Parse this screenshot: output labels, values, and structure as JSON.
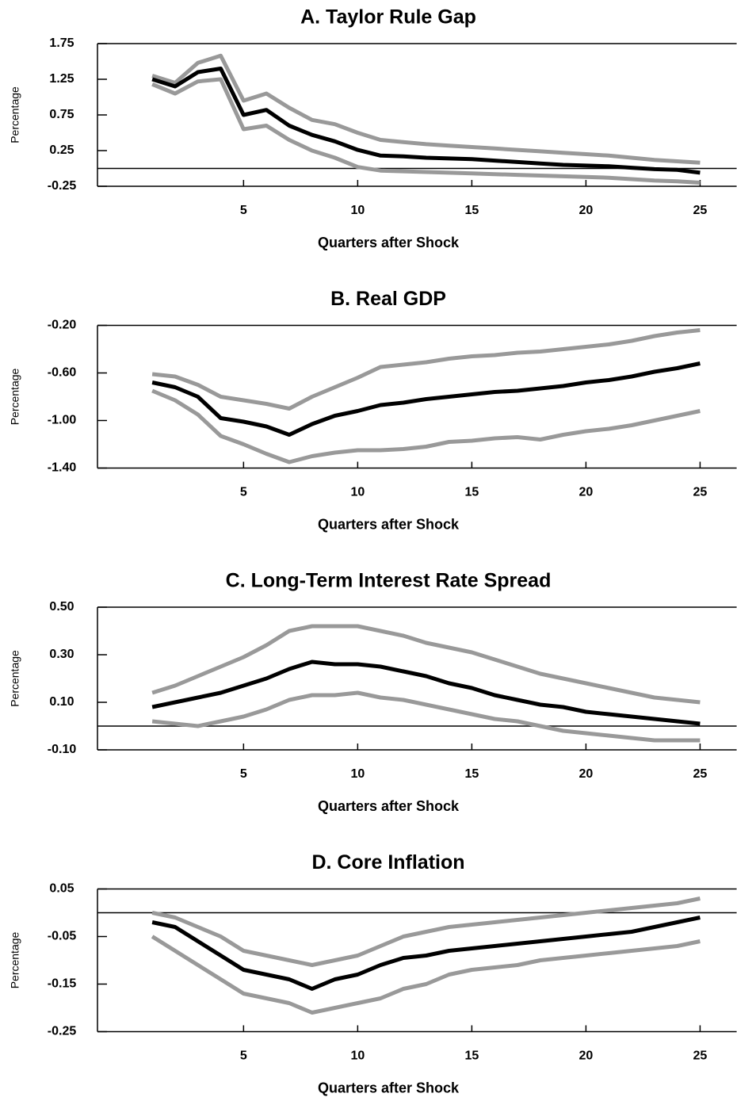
{
  "chart_data": [
    {
      "type": "line",
      "title": "A. Taylor Rule Gap",
      "xlabel": "Quarters after Shock",
      "ylabel": "Percentage",
      "x": [
        1,
        2,
        3,
        4,
        5,
        6,
        7,
        8,
        9,
        10,
        11,
        12,
        13,
        14,
        15,
        16,
        17,
        18,
        19,
        20,
        21,
        22,
        23,
        24,
        25
      ],
      "xlim": [
        -1.4,
        26.6
      ],
      "xticks": [
        5,
        10,
        15,
        20,
        25
      ],
      "ylim": [
        -0.25,
        1.75
      ],
      "yticks": [
        1.75,
        1.25,
        0.75,
        0.25,
        -0.25
      ],
      "zero_line": true,
      "series": [
        {
          "color": "#999999",
          "values": [
            1.3,
            1.2,
            1.48,
            1.58,
            0.95,
            1.05,
            0.85,
            0.68,
            0.62,
            0.5,
            0.4,
            0.37,
            0.34,
            0.32,
            0.3,
            0.28,
            0.26,
            0.24,
            0.22,
            0.2,
            0.18,
            0.15,
            0.12,
            0.1,
            0.08
          ]
        },
        {
          "color": "#999999",
          "values": [
            1.18,
            1.05,
            1.22,
            1.25,
            0.55,
            0.6,
            0.4,
            0.25,
            0.15,
            0.02,
            -0.03,
            -0.04,
            -0.05,
            -0.06,
            -0.07,
            -0.08,
            -0.09,
            -0.1,
            -0.11,
            -0.12,
            -0.13,
            -0.15,
            -0.17,
            -0.18,
            -0.2
          ]
        },
        {
          "color": "#000000",
          "values": [
            1.25,
            1.15,
            1.35,
            1.4,
            0.75,
            0.82,
            0.6,
            0.47,
            0.38,
            0.26,
            0.18,
            0.17,
            0.15,
            0.14,
            0.13,
            0.11,
            0.09,
            0.07,
            0.05,
            0.04,
            0.03,
            0.01,
            -0.01,
            -0.02,
            -0.06
          ]
        }
      ]
    },
    {
      "type": "line",
      "title": "B. Real GDP",
      "xlabel": "Quarters after Shock",
      "ylabel": "Percentage",
      "x": [
        1,
        2,
        3,
        4,
        5,
        6,
        7,
        8,
        9,
        10,
        11,
        12,
        13,
        14,
        15,
        16,
        17,
        18,
        19,
        20,
        21,
        22,
        23,
        24,
        25
      ],
      "xlim": [
        -1.4,
        26.6
      ],
      "xticks": [
        5,
        10,
        15,
        20,
        25
      ],
      "ylim": [
        -1.4,
        -0.2
      ],
      "yticks": [
        {
          "value": -0.2,
          "label": "-0.20"
        },
        {
          "value": -0.6,
          "label": "-0.60"
        },
        {
          "value": -1.0,
          "label": "-1.00"
        },
        {
          "value": -1.4,
          "label": "-1.40"
        }
      ],
      "zero_line": false,
      "series": [
        {
          "color": "#999999",
          "values": [
            -0.61,
            -0.63,
            -0.7,
            -0.8,
            -0.83,
            -0.86,
            -0.9,
            -0.8,
            -0.72,
            -0.64,
            -0.55,
            -0.53,
            -0.51,
            -0.48,
            -0.46,
            -0.45,
            -0.43,
            -0.42,
            -0.4,
            -0.38,
            -0.36,
            -0.33,
            -0.29,
            -0.26,
            -0.24
          ]
        },
        {
          "color": "#999999",
          "values": [
            -0.75,
            -0.83,
            -0.95,
            -1.13,
            -1.2,
            -1.28,
            -1.35,
            -1.3,
            -1.27,
            -1.25,
            -1.25,
            -1.24,
            -1.22,
            -1.18,
            -1.17,
            -1.15,
            -1.14,
            -1.16,
            -1.12,
            -1.09,
            -1.07,
            -1.04,
            -1.0,
            -0.96,
            -0.92
          ]
        },
        {
          "color": "#000000",
          "values": [
            -0.68,
            -0.72,
            -0.8,
            -0.98,
            -1.01,
            -1.05,
            -1.12,
            -1.03,
            -0.96,
            -0.92,
            -0.87,
            -0.85,
            -0.82,
            -0.8,
            -0.78,
            -0.76,
            -0.75,
            -0.73,
            -0.71,
            -0.68,
            -0.66,
            -0.63,
            -0.59,
            -0.56,
            -0.52
          ]
        }
      ]
    },
    {
      "type": "line",
      "title": "C. Long-Term Interest Rate Spread",
      "xlabel": "Quarters after Shock",
      "ylabel": "Percentage",
      "x": [
        1,
        2,
        3,
        4,
        5,
        6,
        7,
        8,
        9,
        10,
        11,
        12,
        13,
        14,
        15,
        16,
        17,
        18,
        19,
        20,
        21,
        22,
        23,
        24,
        25
      ],
      "xlim": [
        -1.4,
        26.6
      ],
      "xticks": [
        5,
        10,
        15,
        20,
        25
      ],
      "ylim": [
        -0.1,
        0.5
      ],
      "yticks": [
        {
          "value": 0.5,
          "label": "0.50"
        },
        {
          "value": 0.3,
          "label": "0.30"
        },
        {
          "value": 0.1,
          "label": "0.10"
        },
        {
          "value": -0.1,
          "label": "-0.10"
        }
      ],
      "zero_line": true,
      "series": [
        {
          "color": "#999999",
          "values": [
            0.14,
            0.17,
            0.21,
            0.25,
            0.29,
            0.34,
            0.4,
            0.42,
            0.42,
            0.42,
            0.4,
            0.38,
            0.35,
            0.33,
            0.31,
            0.28,
            0.25,
            0.22,
            0.2,
            0.18,
            0.16,
            0.14,
            0.12,
            0.11,
            0.1
          ]
        },
        {
          "color": "#999999",
          "values": [
            0.02,
            0.01,
            0.0,
            0.02,
            0.04,
            0.07,
            0.11,
            0.13,
            0.13,
            0.14,
            0.12,
            0.11,
            0.09,
            0.07,
            0.05,
            0.03,
            0.02,
            0.0,
            -0.02,
            -0.03,
            -0.04,
            -0.05,
            -0.06,
            -0.06,
            -0.06
          ]
        },
        {
          "color": "#000000",
          "values": [
            0.08,
            0.1,
            0.12,
            0.14,
            0.17,
            0.2,
            0.24,
            0.27,
            0.26,
            0.26,
            0.25,
            0.23,
            0.21,
            0.18,
            0.16,
            0.13,
            0.11,
            0.09,
            0.08,
            0.06,
            0.05,
            0.04,
            0.03,
            0.02,
            0.01
          ]
        }
      ]
    },
    {
      "type": "line",
      "title": "D. Core Inflation",
      "xlabel": "Quarters after Shock",
      "ylabel": "Percentage",
      "x": [
        1,
        2,
        3,
        4,
        5,
        6,
        7,
        8,
        9,
        10,
        11,
        12,
        13,
        14,
        15,
        16,
        17,
        18,
        19,
        20,
        21,
        22,
        23,
        24,
        25
      ],
      "xlim": [
        -1.4,
        26.6
      ],
      "xticks": [
        5,
        10,
        15,
        20,
        25
      ],
      "ylim": [
        -0.25,
        0.05
      ],
      "yticks": [
        0.05,
        -0.05,
        -0.15,
        -0.25
      ],
      "zero_line": true,
      "series": [
        {
          "color": "#999999",
          "values": [
            0.0,
            -0.01,
            -0.03,
            -0.05,
            -0.08,
            -0.09,
            -0.1,
            -0.11,
            -0.1,
            -0.09,
            -0.07,
            -0.05,
            -0.04,
            -0.03,
            -0.025,
            -0.02,
            -0.015,
            -0.01,
            -0.005,
            0.0,
            0.005,
            0.01,
            0.015,
            0.02,
            0.03
          ]
        },
        {
          "color": "#999999",
          "values": [
            -0.05,
            -0.08,
            -0.11,
            -0.14,
            -0.17,
            -0.18,
            -0.19,
            -0.21,
            -0.2,
            -0.19,
            -0.18,
            -0.16,
            -0.15,
            -0.13,
            -0.12,
            -0.115,
            -0.11,
            -0.1,
            -0.095,
            -0.09,
            -0.085,
            -0.08,
            -0.075,
            -0.07,
            -0.06
          ]
        },
        {
          "color": "#000000",
          "values": [
            -0.02,
            -0.03,
            -0.06,
            -0.09,
            -0.12,
            -0.13,
            -0.14,
            -0.16,
            -0.14,
            -0.13,
            -0.11,
            -0.095,
            -0.09,
            -0.08,
            -0.075,
            -0.07,
            -0.065,
            -0.06,
            -0.055,
            -0.05,
            -0.045,
            -0.04,
            -0.03,
            -0.02,
            -0.01
          ]
        }
      ]
    }
  ]
}
